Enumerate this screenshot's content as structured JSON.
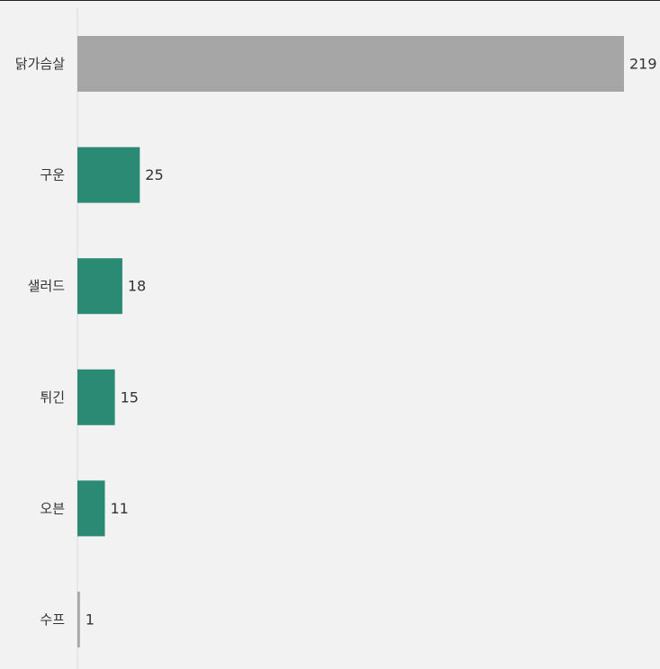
{
  "chart_data": {
    "type": "bar",
    "orientation": "horizontal",
    "categories": [
      "닭가슴살",
      "구운",
      "샐러드",
      "튀긴",
      "오븐",
      "수프"
    ],
    "values": [
      219,
      25,
      18,
      15,
      11,
      1
    ],
    "colors": [
      "#a6a6a6",
      "#2a8a74",
      "#2a8a74",
      "#2a8a74",
      "#2a8a74",
      "#a6a6a6"
    ],
    "data_labels": [
      "219",
      "25",
      "18",
      "15",
      "11",
      "1"
    ],
    "title": "",
    "xlabel": "",
    "ylabel": "",
    "xlim": [
      0,
      219
    ],
    "grid": false,
    "axis_line_color": "#d9d9d9"
  }
}
